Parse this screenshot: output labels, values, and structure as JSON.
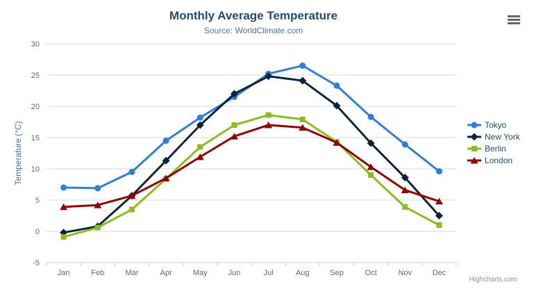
{
  "chart_data": {
    "type": "line",
    "title": "Monthly Average Temperature",
    "subtitle": "Source: WorldClimate.com",
    "categories": [
      "Jan",
      "Feb",
      "Mar",
      "Apr",
      "May",
      "Jun",
      "Jul",
      "Aug",
      "Sep",
      "Oct",
      "Nov",
      "Dec"
    ],
    "xlabel": "",
    "ylabel": "Temperature (°C)",
    "ylim": [
      -5,
      30
    ],
    "ytick_interval": 5,
    "ytick_labels": [
      "-5",
      "0",
      "5",
      "10",
      "15",
      "20",
      "25",
      "30"
    ],
    "grid": true,
    "legend_position": "right",
    "series": [
      {
        "name": "Tokyo",
        "color": "#2f7ed8",
        "marker": "circle",
        "values": [
          7.0,
          6.9,
          9.5,
          14.5,
          18.2,
          21.5,
          25.2,
          26.5,
          23.3,
          18.3,
          13.9,
          9.6
        ]
      },
      {
        "name": "New York",
        "color": "#0d233a",
        "marker": "diamond",
        "values": [
          -0.2,
          0.8,
          5.7,
          11.3,
          17.0,
          22.0,
          24.8,
          24.1,
          20.1,
          14.1,
          8.6,
          2.5
        ]
      },
      {
        "name": "Berlin",
        "color": "#8bbc21",
        "marker": "square",
        "values": [
          -0.9,
          0.6,
          3.5,
          8.4,
          13.5,
          17.0,
          18.6,
          17.9,
          14.3,
          9.0,
          3.9,
          1.0
        ]
      },
      {
        "name": "London",
        "color": "#910000",
        "marker": "triangle",
        "values": [
          3.9,
          4.2,
          5.7,
          8.5,
          11.9,
          15.2,
          17.0,
          16.6,
          14.2,
          10.3,
          6.6,
          4.8
        ]
      }
    ],
    "style": {
      "title_color": "#274b6d",
      "subtitle_color": "#4d759e",
      "ytitle_color": "#4572a7",
      "tick_label_color": "#666666",
      "grid_color": "#d8d8d8",
      "axis_line_color": "#c0d0e0",
      "legend_text_color": "#274b6d",
      "credits_color": "#909090",
      "menu_icon_color": "#666666"
    }
  },
  "toolbar": {
    "menu_icon": "hamburger-icon"
  },
  "credits": {
    "label": "Highcharts.com"
  }
}
